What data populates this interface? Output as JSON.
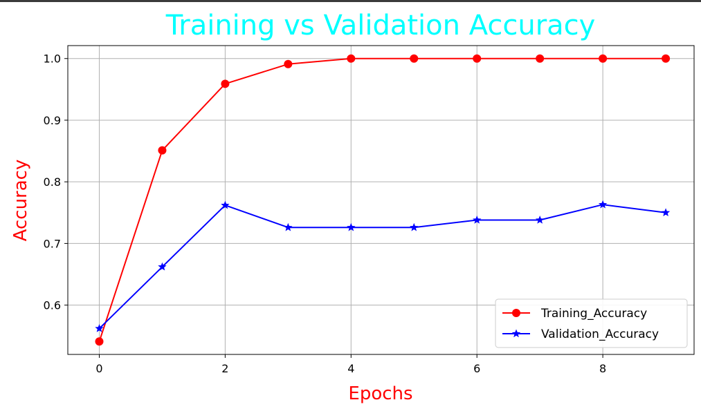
{
  "chart_data": {
    "type": "line",
    "title": "Training vs Validation Accuracy",
    "xlabel": "Epochs",
    "ylabel": "Accuracy",
    "x": [
      0,
      1,
      2,
      3,
      4,
      5,
      6,
      7,
      8,
      9
    ],
    "xlim": [
      -0.5,
      9.45
    ],
    "ylim": [
      0.52,
      1.021
    ],
    "xticks": [
      0,
      2,
      4,
      6,
      8
    ],
    "xtick_labels": [
      "0",
      "2",
      "4",
      "6",
      "8"
    ],
    "yticks": [
      0.6,
      0.7,
      0.8,
      0.9,
      1.0
    ],
    "ytick_labels": [
      "0.6",
      "0.7",
      "0.8",
      "0.9",
      "1.0"
    ],
    "grid": true,
    "legend_position": "lower-right",
    "series": [
      {
        "name": "Training_Accuracy",
        "color": "#ff0000",
        "marker": "circle",
        "values": [
          0.541,
          0.851,
          0.959,
          0.991,
          1.0,
          1.0,
          1.0,
          1.0,
          1.0,
          1.0
        ]
      },
      {
        "name": "Validation_Accuracy",
        "color": "#0000ff",
        "marker": "star",
        "values": [
          0.562,
          0.662,
          0.762,
          0.726,
          0.726,
          0.726,
          0.738,
          0.738,
          0.763,
          0.75
        ]
      }
    ]
  },
  "colors": {
    "title": "#00ffff",
    "axis_labels": "#ff0000",
    "grid": "#b0b0b0"
  }
}
